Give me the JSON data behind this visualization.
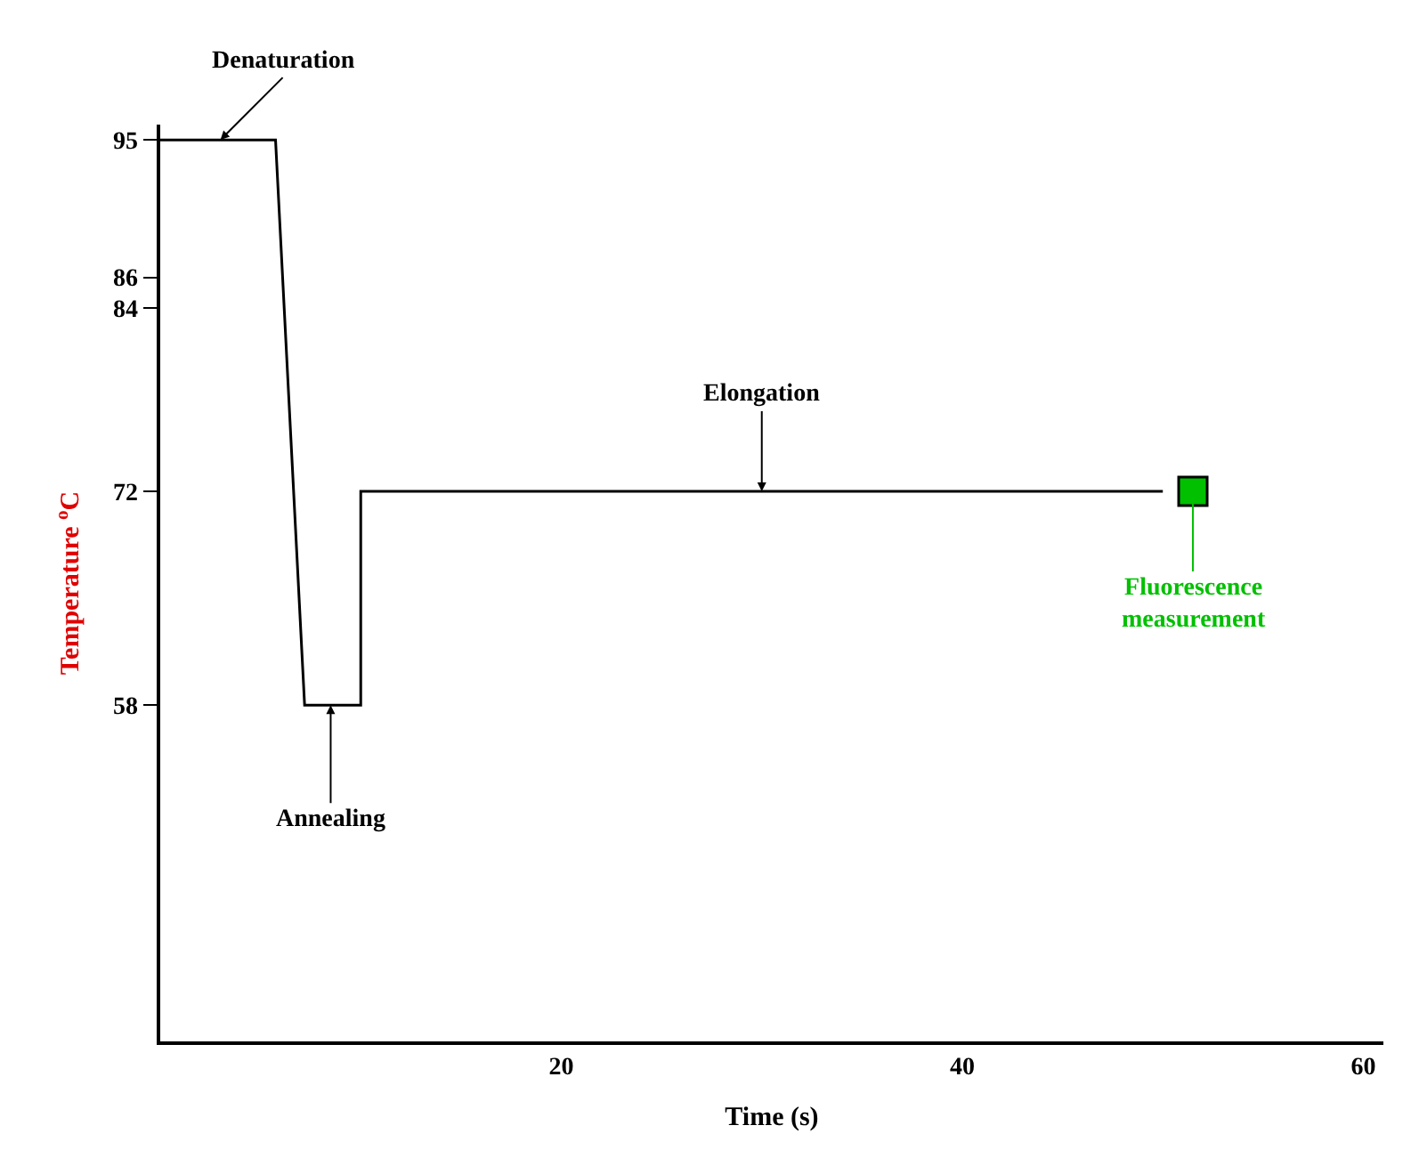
{
  "chart_data": {
    "type": "line",
    "xlabel": "Time (s)",
    "ylabel": "Temperature $^{o}$C",
    "series": [
      {
        "x": [
          0,
          5.75,
          7.2,
          10,
          10,
          50
        ],
        "values": [
          95,
          95,
          58,
          58,
          72,
          72
        ],
        "color": "#000000",
        "marker": "none"
      },
      {
        "type": "scatter",
        "x": [
          51.5
        ],
        "values": [
          72
        ],
        "color": "#00c000",
        "marker": "square"
      }
    ],
    "xlim": [
      0,
      61
    ],
    "xticks": [
      20,
      40,
      60
    ],
    "ylim": [
      36,
      96
    ],
    "yticks": [
      58,
      72,
      84,
      86,
      95
    ],
    "annotations": [
      {
        "text": "Denaturation",
        "x": 3,
        "y": 95
      },
      {
        "text": "Annealing",
        "x": 8.5,
        "y": 58
      },
      {
        "text": "Elongation",
        "x": 30,
        "y": 72
      },
      {
        "text": "Fluorescence\nmeasurement",
        "x": 51.5,
        "y": 72
      }
    ],
    "legend": false
  }
}
